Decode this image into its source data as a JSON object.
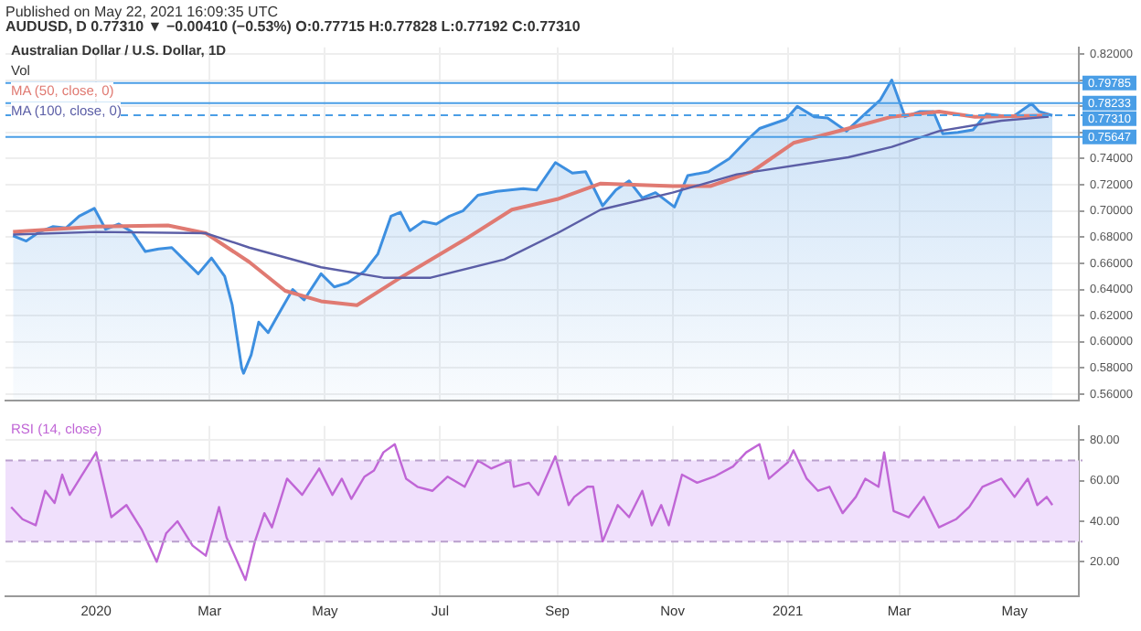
{
  "chart_data": [
    {
      "type": "area",
      "title": "Australian Dollar / U.S. Dollar, 1D",
      "subtitle": "AUDUSD, D 0.77310 ▼ −0.00410 (−0.53%) O:0.77715 H:0.77828 L:0.77192 C:0.77310",
      "annotations": [
        "Published on May 22, 2021 16:09:35 UTC",
        "Vol"
      ],
      "xlim": [
        "2019-11-14",
        "2021-06-04"
      ],
      "xticks": [
        {
          "value": "2020-01-01",
          "label": null
        },
        {
          "value": "2020-03-01",
          "label": null
        },
        {
          "value": "2020-05-01",
          "label": null
        },
        {
          "value": "2020-07-01",
          "label": null
        },
        {
          "value": "2020-09-01",
          "label": null
        },
        {
          "value": "2020-11-01",
          "label": null
        },
        {
          "value": "2021-01-01",
          "label": null
        },
        {
          "value": "2021-03-01",
          "label": null
        },
        {
          "value": "2021-05-01",
          "label": null
        }
      ],
      "ylim": [
        0.555,
        0.825
      ],
      "yticks": [
        {
          "value": 0.56,
          "label": "0.56000"
        },
        {
          "value": 0.58,
          "label": "0.58000"
        },
        {
          "value": 0.6,
          "label": "0.60000"
        },
        {
          "value": 0.62,
          "label": "0.62000"
        },
        {
          "value": 0.64,
          "label": "0.64000"
        },
        {
          "value": 0.66,
          "label": "0.66000"
        },
        {
          "value": 0.68,
          "label": "0.68000"
        },
        {
          "value": 0.7,
          "label": "0.70000"
        },
        {
          "value": 0.72,
          "label": "0.72000"
        },
        {
          "value": 0.74,
          "label": "0.74000"
        },
        {
          "value": 0.76,
          "label": null
        },
        {
          "value": 0.78,
          "label": null
        },
        {
          "value": 0.8,
          "label": null
        },
        {
          "value": 0.82,
          "label": "0.82000"
        }
      ],
      "tick_labels": "y",
      "grid": true,
      "legend": "top left",
      "ref_lines": [
        {
          "axis": "y",
          "value": 0.79785,
          "label": "0.79785",
          "color": "#4a9ee6"
        },
        {
          "axis": "y",
          "value": 0.78233,
          "label": "0.78233",
          "color": "#4a9ee6"
        },
        {
          "axis": "y",
          "value": 0.7731,
          "label": "0.77310",
          "color": "#4a9ee6",
          "line_style": "dashed"
        },
        {
          "axis": "y",
          "value": 0.75647,
          "label": "0.75647",
          "color": "#4a9ee6"
        }
      ],
      "series": [
        {
          "color": "#3d8fe0",
          "x": [
            "2019-11-18",
            "2019-11-25",
            "2019-12-02",
            "2019-12-09",
            "2019-12-16",
            "2019-12-23",
            "2019-12-31",
            "2020-01-06",
            "2020-01-13",
            "2020-01-20",
            "2020-01-27",
            "2020-02-03",
            "2020-02-10",
            "2020-02-17",
            "2020-02-24",
            "2020-03-02",
            "2020-03-09",
            "2020-03-13",
            "2020-03-18",
            "2020-03-19",
            "2020-03-23",
            "2020-03-27",
            "2020-04-01",
            "2020-04-06",
            "2020-04-14",
            "2020-04-20",
            "2020-04-29",
            "2020-05-06",
            "2020-05-13",
            "2020-05-22",
            "2020-05-29",
            "2020-06-05",
            "2020-06-10",
            "2020-06-15",
            "2020-06-22",
            "2020-06-29",
            "2020-07-06",
            "2020-07-13",
            "2020-07-21",
            "2020-07-31",
            "2020-08-07",
            "2020-08-14",
            "2020-08-21",
            "2020-08-31",
            "2020-09-09",
            "2020-09-16",
            "2020-09-25",
            "2020-10-02",
            "2020-10-09",
            "2020-10-16",
            "2020-10-23",
            "2020-11-02",
            "2020-11-09",
            "2020-11-20",
            "2020-12-01",
            "2020-12-11",
            "2020-12-17",
            "2020-12-31",
            "2021-01-06",
            "2021-01-15",
            "2021-01-22",
            "2021-02-01",
            "2021-02-10",
            "2021-02-19",
            "2021-02-25",
            "2021-03-04",
            "2021-03-12",
            "2021-03-19",
            "2021-03-24",
            "2021-04-01",
            "2021-04-09",
            "2021-04-16",
            "2021-04-23",
            "2021-04-30",
            "2021-05-10",
            "2021-05-14",
            "2021-05-21"
          ],
          "values": [
            0.681,
            0.677,
            0.684,
            0.688,
            0.687,
            0.696,
            0.702,
            0.686,
            0.69,
            0.684,
            0.669,
            0.671,
            0.672,
            0.662,
            0.652,
            0.664,
            0.65,
            0.628,
            0.58,
            0.576,
            0.59,
            0.615,
            0.607,
            0.62,
            0.64,
            0.632,
            0.652,
            0.642,
            0.645,
            0.654,
            0.667,
            0.696,
            0.699,
            0.685,
            0.692,
            0.69,
            0.696,
            0.7,
            0.712,
            0.715,
            0.716,
            0.717,
            0.716,
            0.737,
            0.729,
            0.73,
            0.704,
            0.716,
            0.723,
            0.71,
            0.714,
            0.703,
            0.727,
            0.73,
            0.74,
            0.755,
            0.763,
            0.77,
            0.78,
            0.772,
            0.771,
            0.761,
            0.773,
            0.785,
            0.8,
            0.772,
            0.776,
            0.776,
            0.759,
            0.76,
            0.762,
            0.774,
            0.773,
            0.772,
            0.782,
            0.776,
            0.773
          ]
        },
        {
          "type": "line",
          "name": "MA (50, close, 0)",
          "color": "#e07a72",
          "x": [
            "2019-11-18",
            "2020-01-01",
            "2020-02-08",
            "2020-02-28",
            "2020-03-22",
            "2020-04-10",
            "2020-04-29",
            "2020-05-18",
            "2020-06-10",
            "2020-07-15",
            "2020-08-08",
            "2020-09-01",
            "2020-09-24",
            "2020-11-01",
            "2020-11-21",
            "2020-12-13",
            "2021-01-04",
            "2021-02-02",
            "2021-02-25",
            "2021-03-22",
            "2021-04-10",
            "2021-05-19"
          ],
          "values": [
            0.684,
            0.688,
            0.689,
            0.683,
            0.661,
            0.639,
            0.631,
            0.628,
            0.649,
            0.679,
            0.701,
            0.709,
            0.721,
            0.719,
            0.719,
            0.73,
            0.752,
            0.763,
            0.772,
            0.776,
            0.772,
            0.773
          ]
        },
        {
          "type": "line",
          "name": "MA (100, close, 0)",
          "color": "#5b5ea6",
          "x": [
            "2019-11-18",
            "2020-01-01",
            "2020-02-28",
            "2020-03-22",
            "2020-04-29",
            "2020-06-01",
            "2020-06-26",
            "2020-08-04",
            "2020-09-01",
            "2020-09-24",
            "2020-11-01",
            "2020-12-05",
            "2021-02-02",
            "2021-02-25",
            "2021-03-22",
            "2021-04-24",
            "2021-05-19"
          ],
          "values": [
            0.682,
            0.684,
            0.683,
            0.672,
            0.657,
            0.649,
            0.649,
            0.663,
            0.683,
            0.701,
            0.714,
            0.728,
            0.741,
            0.749,
            0.761,
            0.769,
            0.772
          ]
        }
      ]
    },
    {
      "type": "line",
      "legend": "top left",
      "grid": true,
      "xlim": [
        "2019-11-14",
        "2021-06-04"
      ],
      "xticks": [
        {
          "value": "2020-01-01",
          "label": "2020"
        },
        {
          "value": "2020-03-01",
          "label": "Mar"
        },
        {
          "value": "2020-05-01",
          "label": "May"
        },
        {
          "value": "2020-07-01",
          "label": "Jul"
        },
        {
          "value": "2020-09-01",
          "label": "Sep"
        },
        {
          "value": "2020-11-01",
          "label": "Nov"
        },
        {
          "value": "2021-01-01",
          "label": "2021"
        },
        {
          "value": "2021-03-01",
          "label": "Mar"
        },
        {
          "value": "2021-05-01",
          "label": "May"
        }
      ],
      "ylim": [
        3,
        87
      ],
      "yticks": [
        {
          "value": 20,
          "label": "20.00"
        },
        {
          "value": 40,
          "label": "40.00"
        },
        {
          "value": 60,
          "label": "60.00"
        },
        {
          "value": 80,
          "label": "80.00"
        }
      ],
      "bands": [
        {
          "axis": "y",
          "from": 30,
          "to": 70,
          "color": "#f0e0fc"
        }
      ],
      "ref_lines": [
        {
          "axis": "y",
          "value": 30,
          "color": "#b9a0cc",
          "line_style": "dashed"
        },
        {
          "axis": "y",
          "value": 70,
          "color": "#b9a0cc",
          "line_style": "dashed"
        }
      ],
      "series": [
        {
          "name": "RSI (14, close)",
          "color": "#c066d6",
          "x": [
            "2019-11-17",
            "2019-11-23",
            "2019-11-30",
            "2019-12-05",
            "2019-12-10",
            "2019-12-14",
            "2019-12-18",
            "2019-12-24",
            "2020-01-01",
            "2020-01-09",
            "2020-01-17",
            "2020-01-25",
            "2020-02-02",
            "2020-02-07",
            "2020-02-13",
            "2020-02-21",
            "2020-02-28",
            "2020-03-06",
            "2020-03-10",
            "2020-03-20",
            "2020-03-25",
            "2020-03-30",
            "2020-04-03",
            "2020-04-11",
            "2020-04-19",
            "2020-04-28",
            "2020-05-05",
            "2020-05-10",
            "2020-05-15",
            "2020-05-22",
            "2020-05-27",
            "2020-06-01",
            "2020-06-07",
            "2020-06-13",
            "2020-06-19",
            "2020-06-27",
            "2020-07-05",
            "2020-07-14",
            "2020-07-21",
            "2020-07-28",
            "2020-08-07",
            "2020-08-09",
            "2020-08-17",
            "2020-08-22",
            "2020-08-31",
            "2020-09-07",
            "2020-09-10",
            "2020-09-17",
            "2020-09-20",
            "2020-09-25",
            "2020-10-03",
            "2020-10-09",
            "2020-10-16",
            "2020-10-21",
            "2020-10-26",
            "2020-10-30",
            "2020-11-06",
            "2020-11-14",
            "2020-11-23",
            "2020-12-03",
            "2020-12-10",
            "2020-12-17",
            "2020-12-22",
            "2021-01-01",
            "2021-01-04",
            "2021-01-11",
            "2021-01-17",
            "2021-01-23",
            "2021-01-30",
            "2021-02-06",
            "2021-02-11",
            "2021-02-18",
            "2021-02-21",
            "2021-02-26",
            "2021-03-06",
            "2021-03-14",
            "2021-03-22",
            "2021-03-31",
            "2021-04-07",
            "2021-04-14",
            "2021-04-24",
            "2021-05-01",
            "2021-05-08",
            "2021-05-13",
            "2021-05-18",
            "2021-05-21"
          ],
          "values": [
            47,
            41,
            38,
            55,
            49,
            63,
            53,
            62,
            74,
            42,
            48,
            36,
            20,
            34,
            40,
            28,
            23,
            47,
            32,
            11,
            30,
            44,
            37,
            61,
            53,
            66,
            53,
            61,
            51,
            62,
            65,
            74,
            78,
            61,
            57,
            55,
            62,
            57,
            70,
            66,
            70,
            57,
            59,
            53,
            72,
            48,
            52,
            57,
            57,
            30,
            48,
            42,
            55,
            38,
            48,
            38,
            63,
            59,
            62,
            67,
            74,
            78,
            61,
            69,
            75,
            61,
            55,
            57,
            44,
            52,
            61,
            57,
            74,
            45,
            42,
            52,
            37,
            41,
            47,
            57,
            61,
            52,
            61,
            48,
            52,
            48
          ]
        }
      ]
    }
  ]
}
